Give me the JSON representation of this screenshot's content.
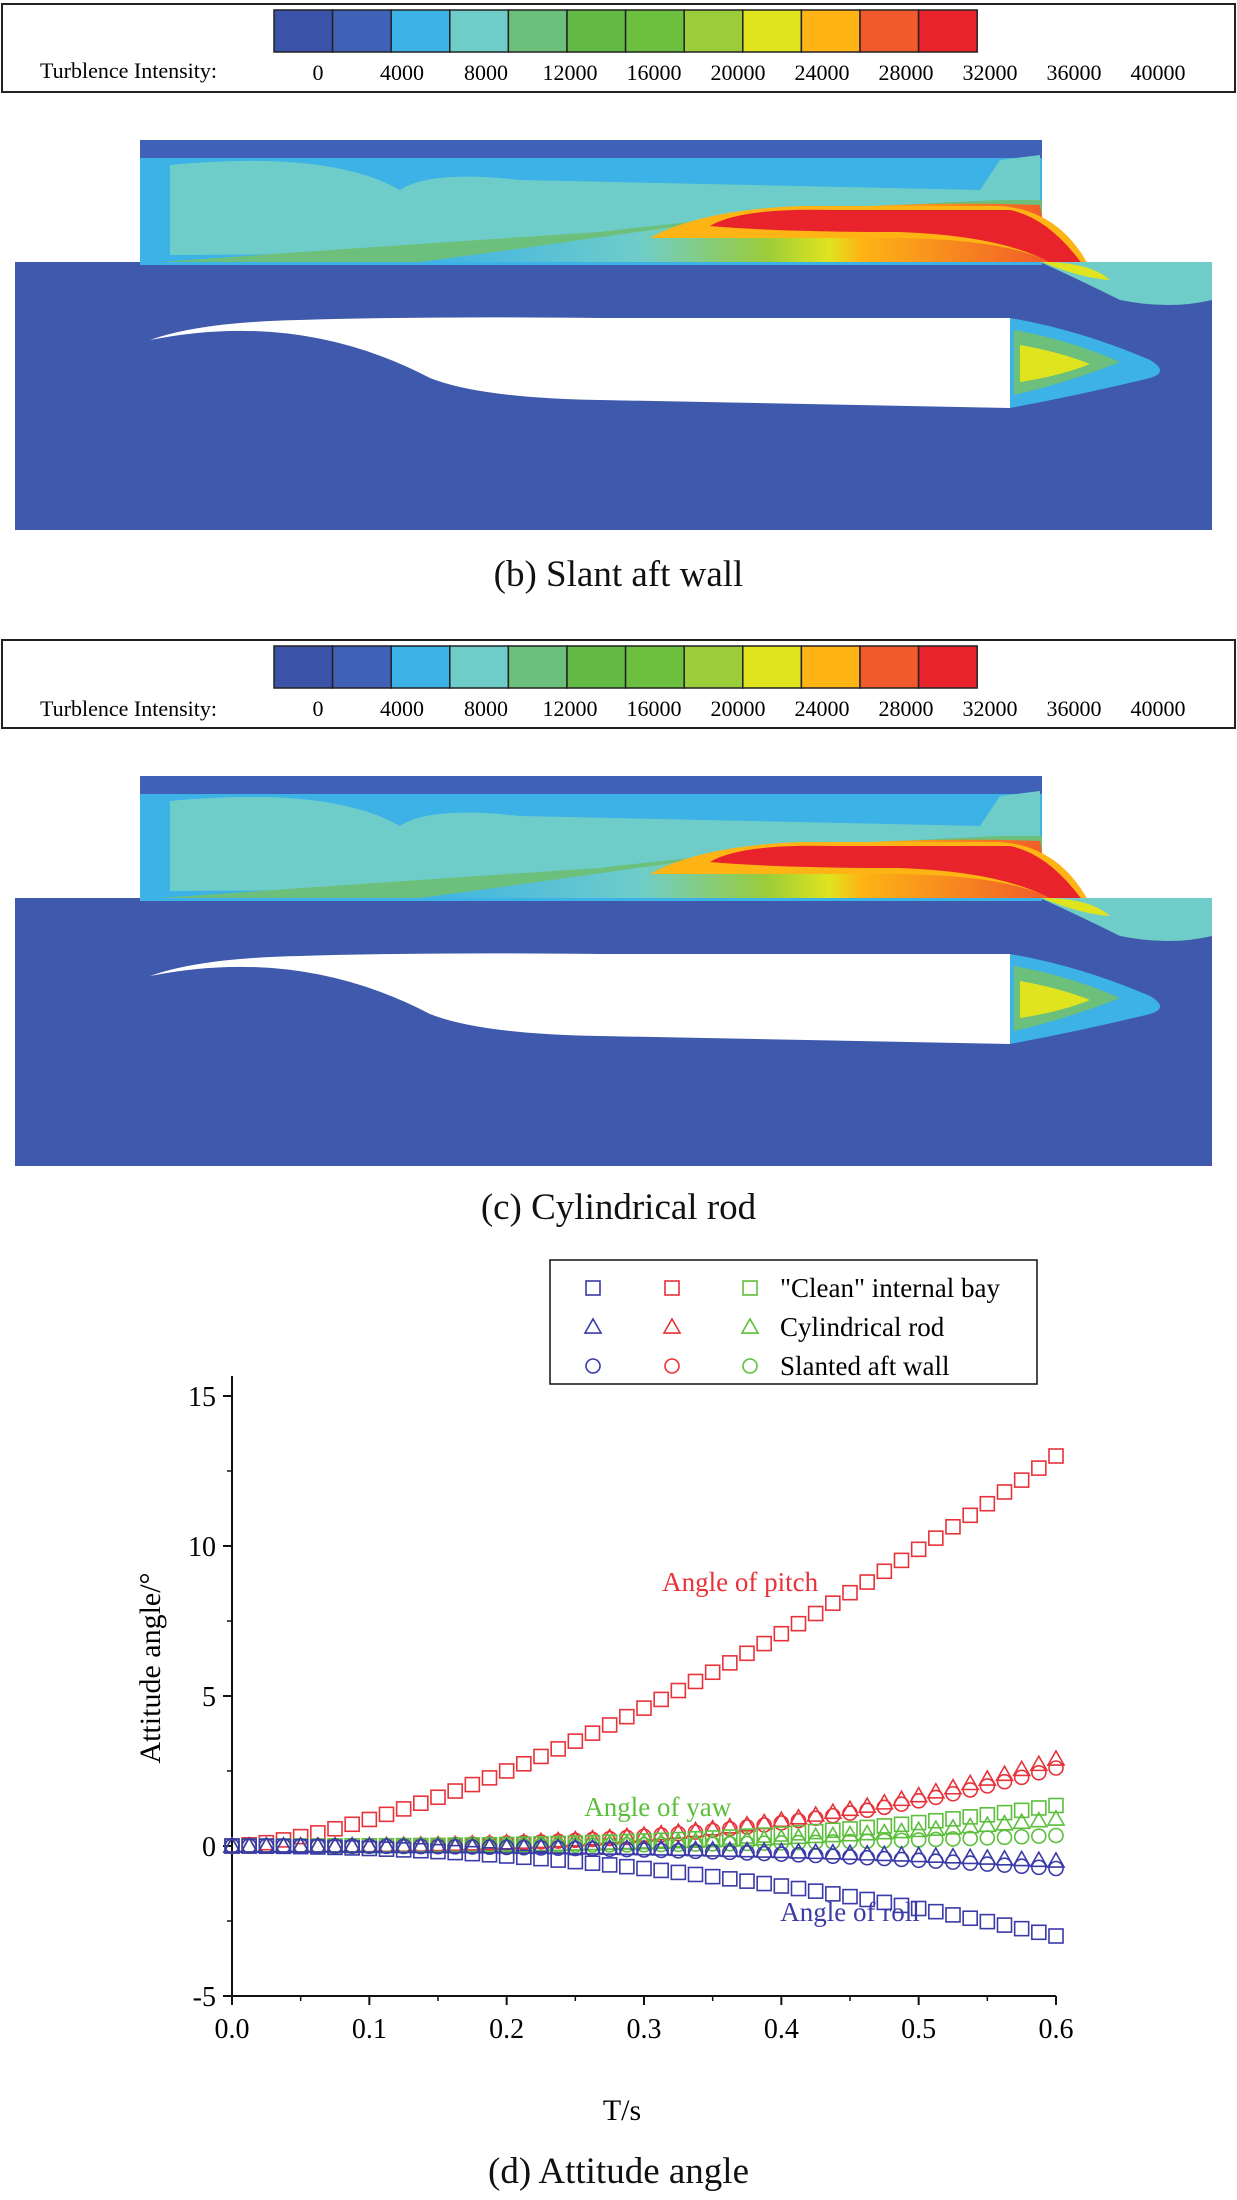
{
  "panels": [
    {
      "id": "b",
      "caption": "(b) Slant aft wall",
      "legend_label": "Turblence Intensity:",
      "legend_ticks": [
        "0",
        "4000",
        "8000",
        "12000",
        "16000",
        "20000",
        "24000",
        "28000",
        "32000",
        "36000",
        "40000"
      ],
      "legend_colors": [
        "#3a52a8",
        "#3f62b8",
        "#3db2e6",
        "#6fcdc9",
        "#6cc07c",
        "#62ba45",
        "#6cbf3f",
        "#9bcc3a",
        "#e0e41e",
        "#fdb414",
        "#f15a2a",
        "#e8232b"
      ]
    },
    {
      "id": "c",
      "caption": "(c) Cylindrical rod",
      "legend_label": "Turblence Intensity:",
      "legend_ticks": [
        "0",
        "4000",
        "8000",
        "12000",
        "16000",
        "20000",
        "24000",
        "28000",
        "32000",
        "36000",
        "40000"
      ],
      "legend_colors": [
        "#3a52a8",
        "#3f62b8",
        "#3db2e6",
        "#6fcdc9",
        "#6cc07c",
        "#62ba45",
        "#6cbf3f",
        "#9bcc3a",
        "#e0e41e",
        "#fdb414",
        "#f15a2a",
        "#e8232b"
      ]
    }
  ],
  "chart_caption": "(d) Attitude angle",
  "chart_data": {
    "type": "scatter",
    "xlabel": "T/s",
    "ylabel": "Attitude angle/°",
    "xlim": [
      0.0,
      0.6
    ],
    "ylim": [
      -5,
      15
    ],
    "xticks": [
      0.0,
      0.1,
      0.2,
      0.3,
      0.4,
      0.5,
      0.6
    ],
    "xtick_labels": [
      "0.0",
      "0.1",
      "0.2",
      "0.3",
      "0.4",
      "0.5",
      "0.6"
    ],
    "yticks": [
      -5,
      0,
      5,
      10,
      15
    ],
    "ytick_labels": [
      "-5",
      "0",
      "5",
      "10",
      "15"
    ],
    "legend": [
      {
        "label": "\"Clean\" internal bay",
        "marker": "square"
      },
      {
        "label": "Cylindrical rod",
        "marker": "triangle"
      },
      {
        "label": "Slanted aft wall",
        "marker": "circle"
      }
    ],
    "angle_colors": {
      "roll": "#3a3aa8",
      "pitch": "#e8323a",
      "yaw": "#5cbf3c"
    },
    "annotations": [
      {
        "text": "Angle of pitch",
        "color": "#e8323a",
        "x": 0.37,
        "y": 8.5
      },
      {
        "text": "Angle of yaw",
        "color": "#5cbf3c",
        "x": 0.31,
        "y": 1.0
      },
      {
        "text": "Angle of roll",
        "color": "#3a3aa8",
        "x": 0.45,
        "y": -2.5
      }
    ],
    "n_points": 49,
    "series": [
      {
        "name": "Angle of pitch — \"Clean\" internal bay",
        "angle": "pitch",
        "marker": "square",
        "final": 13.0,
        "exp": 1.5
      },
      {
        "name": "Angle of pitch — Cylindrical rod",
        "angle": "pitch",
        "marker": "triangle",
        "final": 2.9,
        "exp": 3.0
      },
      {
        "name": "Angle of pitch — Slanted aft wall",
        "angle": "pitch",
        "marker": "circle",
        "final": 2.6,
        "exp": 3.0
      },
      {
        "name": "Angle of yaw — \"Clean\" internal bay",
        "angle": "yaw",
        "marker": "square",
        "final": 1.35,
        "exp": 3.0
      },
      {
        "name": "Angle of yaw — Cylindrical rod",
        "angle": "yaw",
        "marker": "triangle",
        "final": 0.9,
        "exp": 3.0
      },
      {
        "name": "Angle of yaw — Slanted aft wall",
        "angle": "yaw",
        "marker": "circle",
        "final": 0.35,
        "exp": 3.0
      },
      {
        "name": "Angle of roll — \"Clean\" internal bay",
        "angle": "roll",
        "marker": "square",
        "final": -3.0,
        "exp": 2.0
      },
      {
        "name": "Angle of roll — Cylindrical rod",
        "angle": "roll",
        "marker": "triangle",
        "final": -0.5,
        "exp": 2.5
      },
      {
        "name": "Angle of roll — Slanted aft wall",
        "angle": "roll",
        "marker": "circle",
        "final": -0.75,
        "exp": 2.5
      }
    ]
  }
}
